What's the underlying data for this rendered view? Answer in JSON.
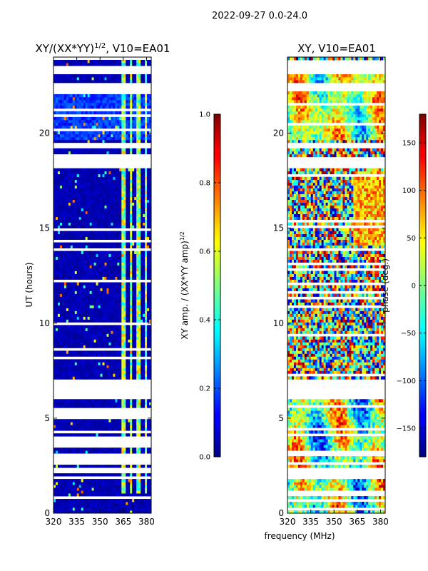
{
  "suptitle": "2022-09-27 0.0-24.0",
  "chart_data": [
    {
      "type": "heatmap",
      "title_main": "XY/(XX*YY)",
      "title_sup": "1/2",
      "title_tail": ", V10=EA01",
      "ylabel": "UT (hours)",
      "xlim": [
        320,
        383
      ],
      "ylim": [
        0,
        24
      ],
      "xticks": [
        "320",
        "335",
        "350",
        "365",
        "380"
      ],
      "xtick_values": [
        320,
        335,
        350,
        365,
        380
      ],
      "yticks": [
        "0",
        "5",
        "10",
        "15",
        "20"
      ],
      "ytick_values": [
        0,
        5,
        10,
        15,
        20
      ],
      "colorbar": {
        "label_main": "XY amp. / (XX*YY amp)",
        "label_sup": "1/2",
        "range": [
          0.0,
          1.0
        ],
        "ticks": [
          "0.0",
          "0.2",
          "0.4",
          "0.6",
          "0.8",
          "1.0"
        ],
        "tick_values": [
          0.0,
          0.2,
          0.4,
          0.6,
          0.8,
          1.0
        ]
      },
      "gaps_hours": [
        [
          6.0,
          7.0
        ],
        [
          18.1,
          18.6
        ],
        [
          19.2,
          19.5
        ],
        [
          22.2,
          22.6
        ],
        [
          23.0,
          23.3
        ]
      ],
      "bright_band_mhz": [
        [
          363,
          366
        ],
        [
          368,
          370
        ],
        [
          373,
          376
        ],
        [
          378,
          380
        ]
      ]
    },
    {
      "type": "heatmap",
      "title": "XY, V10=EA01",
      "xlabel": "frequency (MHz)",
      "xlim": [
        320,
        383
      ],
      "ylim": [
        0,
        24
      ],
      "xticks": [
        "320",
        "335",
        "350",
        "365",
        "380"
      ],
      "xtick_values": [
        320,
        335,
        350,
        365,
        380
      ],
      "yticks": [
        "0",
        "5",
        "10",
        "15",
        "20"
      ],
      "ytick_values": [
        0,
        5,
        10,
        15,
        20
      ],
      "colorbar": {
        "label": "phase (deg.)",
        "range": [
          -180,
          180
        ],
        "ticks": [
          "−150",
          "−100",
          "−50",
          "0",
          "50",
          "100",
          "150"
        ],
        "tick_values": [
          -150,
          -100,
          -50,
          0,
          50,
          100,
          150
        ]
      },
      "gaps_hours": [
        [
          6.0,
          7.0
        ],
        [
          18.1,
          18.6
        ],
        [
          19.2,
          19.5
        ],
        [
          22.2,
          22.6
        ],
        [
          23.0,
          23.3
        ]
      ]
    }
  ]
}
